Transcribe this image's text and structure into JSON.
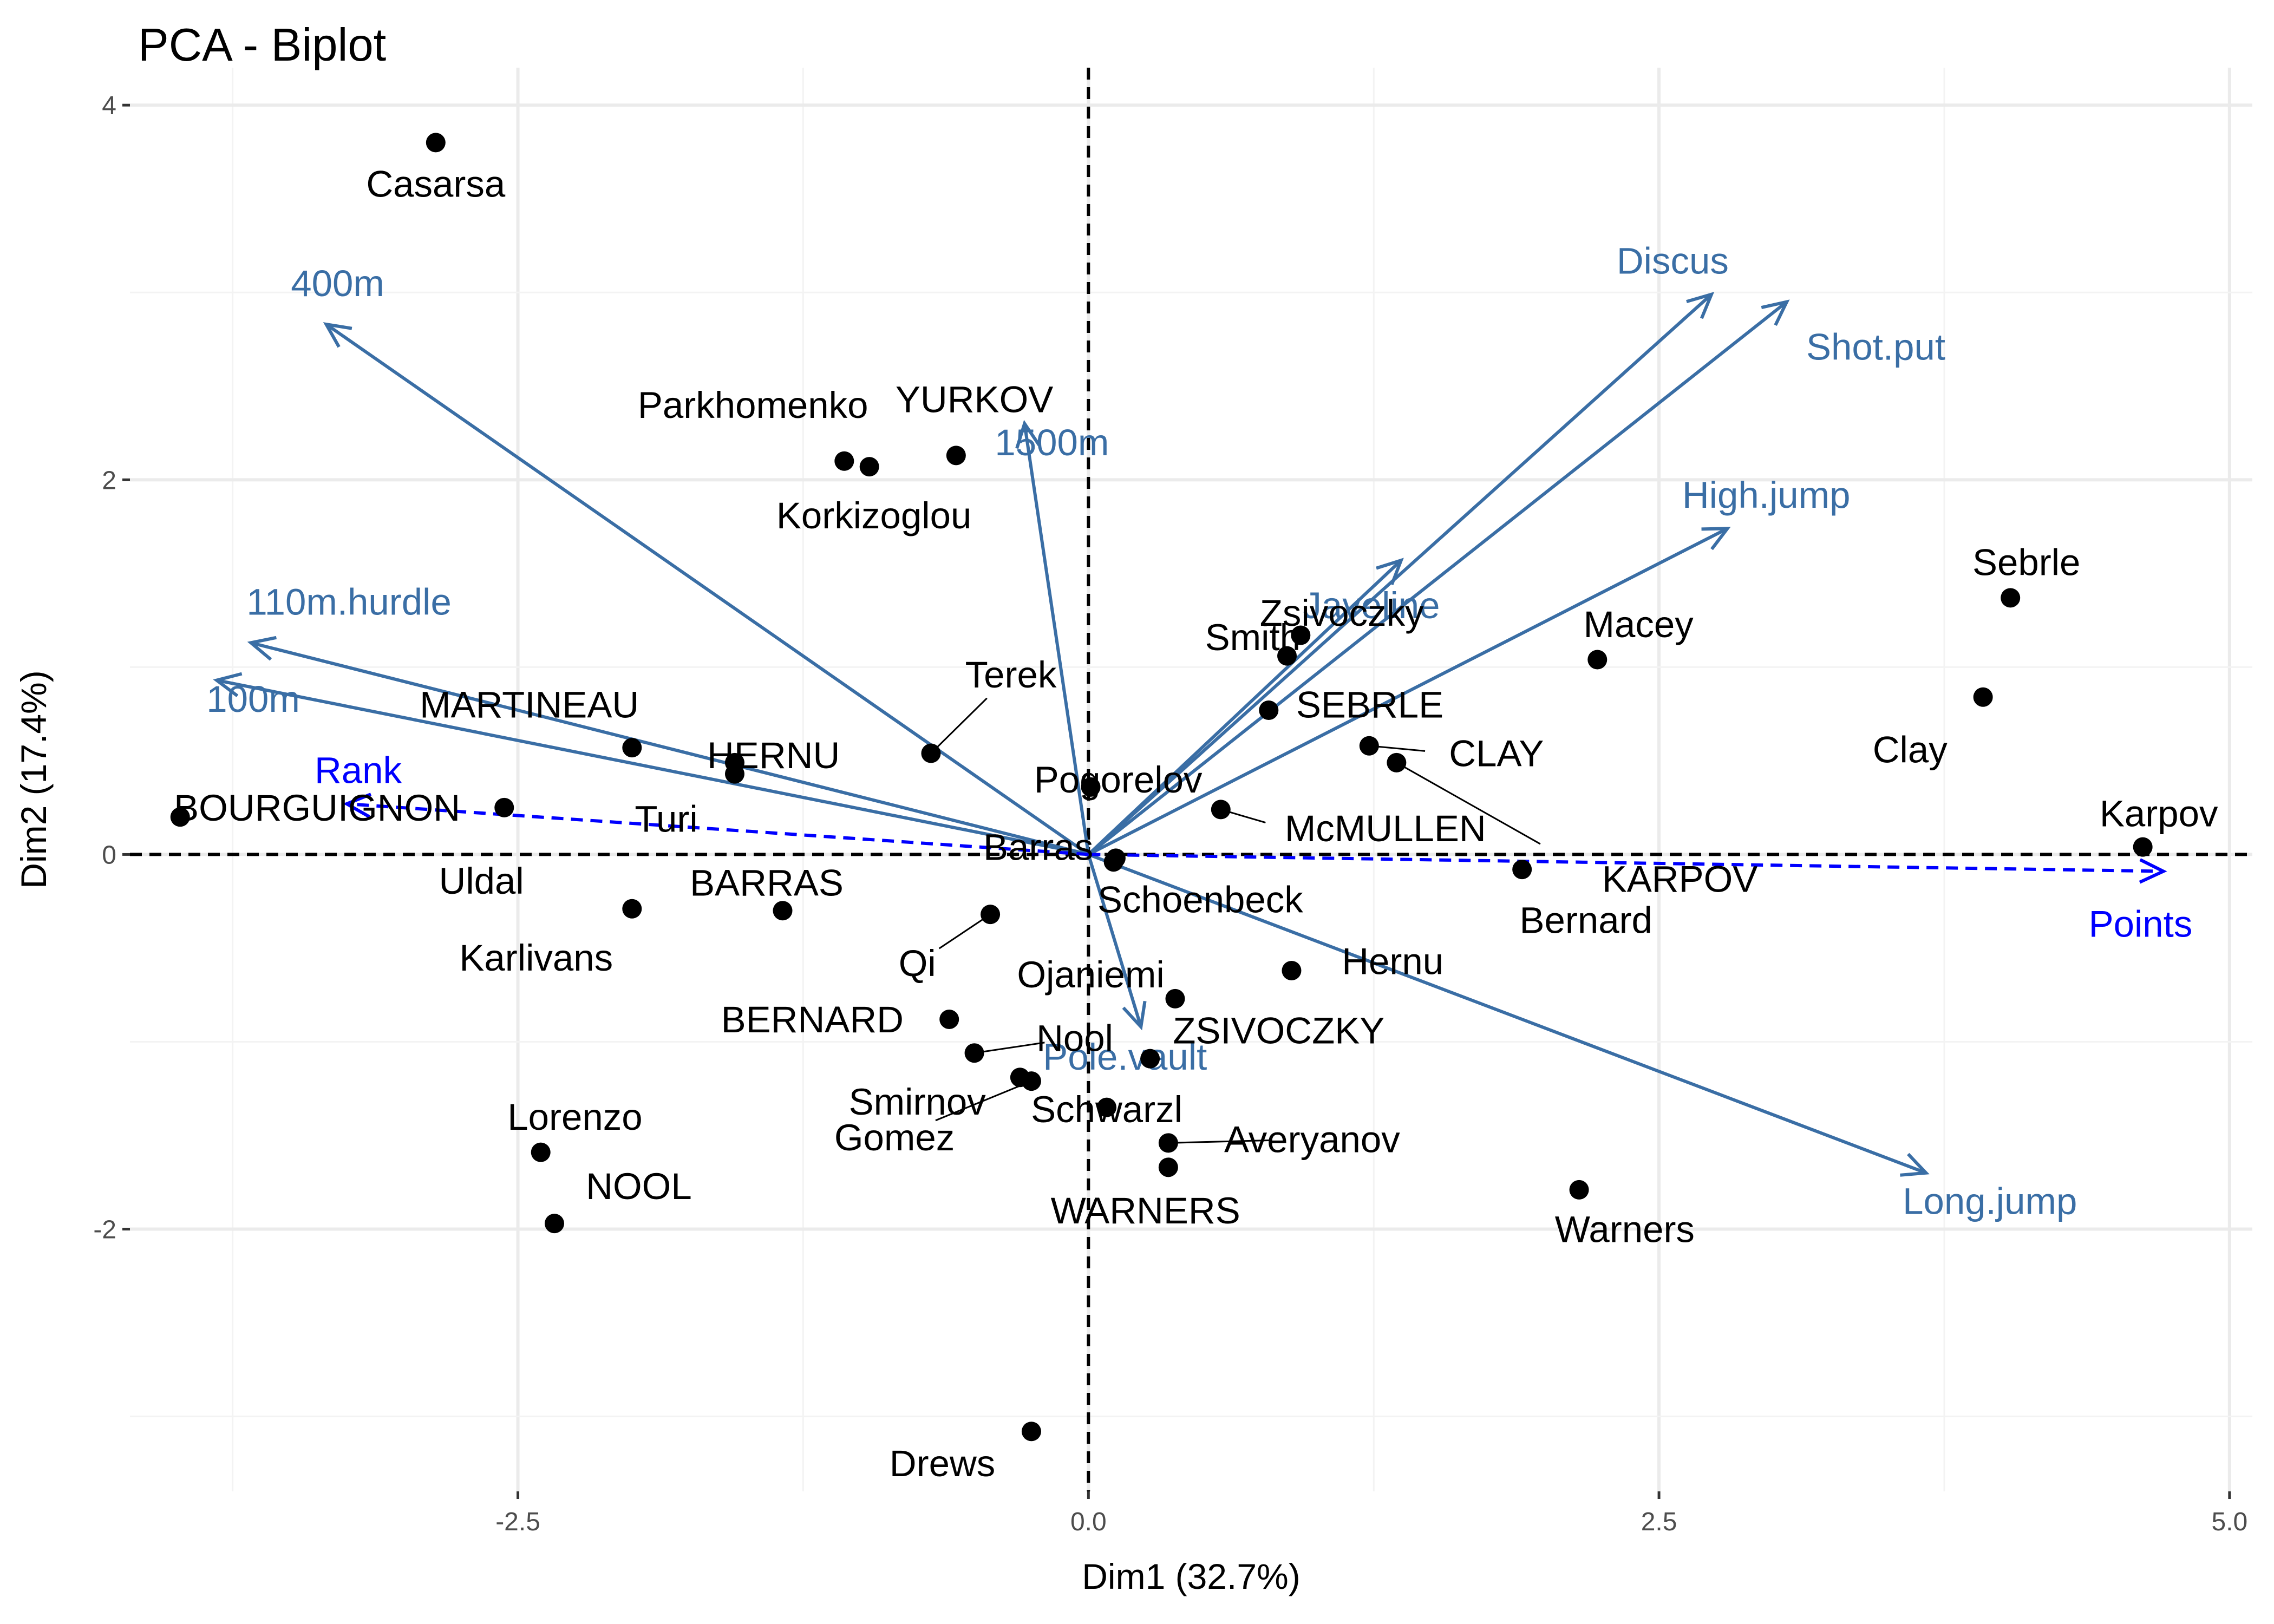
{
  "chart_data": {
    "type": "scatter",
    "subtype": "pca-biplot",
    "title": "PCA - Biplot",
    "xlabel": "Dim1 (32.7%)",
    "ylabel": "Dim2 (17.4%)",
    "xlim": [
      -4.2,
      5.1
    ],
    "ylim": [
      -3.4,
      4.2
    ],
    "x_ticks": [
      -2.5,
      0,
      2.5,
      5
    ],
    "x_tick_labels": [
      "-2.5",
      "0.0",
      "2.5",
      "5.0"
    ],
    "y_ticks": [
      -2,
      0,
      2,
      4
    ],
    "y_tick_labels": [
      "-2",
      "0",
      "2",
      "4"
    ],
    "grid": true,
    "reference_lines": {
      "x": 0,
      "y": 0,
      "style": "dashed"
    },
    "colors": {
      "individuals": "#000000",
      "active_variables": "#3A6EA5",
      "supplementary_variables": "#0000FF"
    },
    "individuals": [
      {
        "name": "Casarsa",
        "x": -2.86,
        "y": 3.8
      },
      {
        "name": "Parkhomenko",
        "x": -1.07,
        "y": 2.1
      },
      {
        "name": "YURKOV",
        "x": -0.58,
        "y": 2.13
      },
      {
        "name": "Korkizoglou",
        "x": -0.96,
        "y": 2.07
      },
      {
        "name": "Sebrle",
        "x": 4.04,
        "y": 1.37
      },
      {
        "name": "Zsivoczky",
        "x": 0.93,
        "y": 1.17
      },
      {
        "name": "Macey",
        "x": 2.23,
        "y": 1.04
      },
      {
        "name": "Smith",
        "x": 0.87,
        "y": 1.06
      },
      {
        "name": "SEBRLE",
        "x": 0.79,
        "y": 0.77
      },
      {
        "name": "Clay",
        "x": 3.92,
        "y": 0.84
      },
      {
        "name": "Terek",
        "x": -0.69,
        "y": 0.54
      },
      {
        "name": "MARTINEAU",
        "x": -2.0,
        "y": 0.57
      },
      {
        "name": "HERNU",
        "x": -1.55,
        "y": 0.49
      },
      {
        "name": "Turi",
        "x": -1.55,
        "y": 0.43
      },
      {
        "name": "BOURGUIGNON",
        "x": -3.98,
        "y": 0.2
      },
      {
        "name": "Uldal",
        "x": -2.56,
        "y": 0.25
      },
      {
        "name": "CLAY",
        "x": 1.23,
        "y": 0.58
      },
      {
        "name": "KARPOV",
        "x": 1.35,
        "y": 0.49
      },
      {
        "name": "Pogorelov",
        "x": 0.01,
        "y": 0.36
      },
      {
        "name": "McMULLEN",
        "x": 0.58,
        "y": 0.24
      },
      {
        "name": "Karpov",
        "x": 4.62,
        "y": 0.04
      },
      {
        "name": "Barras",
        "x": 0.11,
        "y": -0.04
      },
      {
        "name": "Bernard",
        "x": 1.9,
        "y": -0.08
      },
      {
        "name": "BARRAS",
        "x": -1.34,
        "y": -0.3
      },
      {
        "name": "Karlivans",
        "x": -2.0,
        "y": -0.29
      },
      {
        "name": "Qi",
        "x": -0.43,
        "y": -0.32
      },
      {
        "name": "Schoenbeck",
        "x": 0.12,
        "y": -0.02
      },
      {
        "name": "Hernu",
        "x": 0.89,
        "y": -0.62
      },
      {
        "name": "Ojaniemi",
        "x": 0.38,
        "y": -0.77
      },
      {
        "name": "BERNARD",
        "x": -0.61,
        "y": -0.88
      },
      {
        "name": "ZSIVOCZKY",
        "x": 0.27,
        "y": -1.09
      },
      {
        "name": "Nool",
        "x": -0.5,
        "y": -1.06
      },
      {
        "name": "Smirnov",
        "x": -0.3,
        "y": -1.19
      },
      {
        "name": "Schwarzl",
        "x": 0.08,
        "y": -1.35
      },
      {
        "name": "Averyanov",
        "x": 0.35,
        "y": -1.54
      },
      {
        "name": "WARNERS",
        "x": 0.35,
        "y": -1.67
      },
      {
        "name": "Gomez",
        "x": -0.25,
        "y": -1.21
      },
      {
        "name": "Lorenzo",
        "x": -2.4,
        "y": -1.59
      },
      {
        "name": "NOOL",
        "x": -2.34,
        "y": -1.97
      },
      {
        "name": "Warners",
        "x": 2.15,
        "y": -1.79
      },
      {
        "name": "Drews",
        "x": -0.25,
        "y": -3.08
      }
    ],
    "variables": [
      {
        "name": "400m",
        "x": -3.34,
        "y": 2.83,
        "supplementary": false
      },
      {
        "name": "1500m",
        "x": -0.28,
        "y": 2.3,
        "supplementary": false
      },
      {
        "name": "110m.hurdle",
        "x": -3.67,
        "y": 1.13,
        "supplementary": false
      },
      {
        "name": "100m",
        "x": -3.82,
        "y": 0.93,
        "supplementary": false
      },
      {
        "name": "Discus",
        "x": 2.73,
        "y": 2.99,
        "supplementary": false
      },
      {
        "name": "Shot.put",
        "x": 3.06,
        "y": 2.95,
        "supplementary": false
      },
      {
        "name": "High.jump",
        "x": 2.8,
        "y": 1.74,
        "supplementary": false
      },
      {
        "name": "Javeline",
        "x": 1.37,
        "y": 1.57,
        "supplementary": false
      },
      {
        "name": "Pole.vault",
        "x": 0.23,
        "y": -0.92,
        "supplementary": false
      },
      {
        "name": "Long.jump",
        "x": 3.67,
        "y": -1.7,
        "supplementary": false
      },
      {
        "name": "Rank",
        "x": -3.25,
        "y": 0.27,
        "supplementary": true
      },
      {
        "name": "Points",
        "x": 4.71,
        "y": -0.09,
        "supplementary": true
      }
    ]
  }
}
